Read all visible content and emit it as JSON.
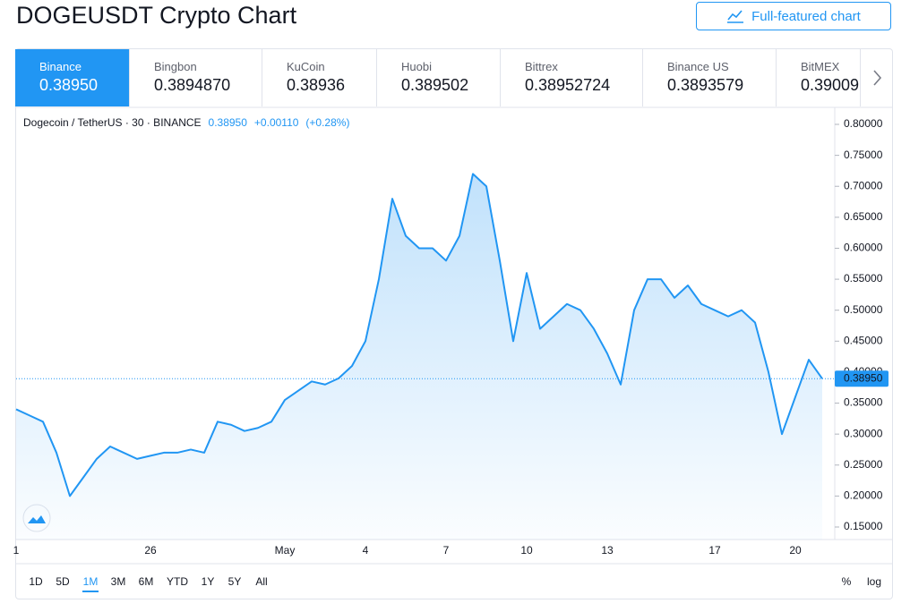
{
  "header": {
    "title": "DOGEUSDT Crypto Chart",
    "button": "Full-featured chart"
  },
  "exchanges": [
    {
      "name": "Binance",
      "price": "0.38950"
    },
    {
      "name": "Bingbon",
      "price": "0.3894870"
    },
    {
      "name": "KuCoin",
      "price": "0.38936"
    },
    {
      "name": "Huobi",
      "price": "0.389502"
    },
    {
      "name": "Bittrex",
      "price": "0.38952724"
    },
    {
      "name": "Binance US",
      "price": "0.3893579"
    },
    {
      "name": "BitMEX",
      "price": "0.39009"
    }
  ],
  "chart_data": {
    "type": "area",
    "legend": {
      "symbol": "Dogecoin / TetherUS · 30 · BINANCE",
      "price": "0.38950",
      "change": "+0.00110",
      "change_pct": "(+0.28%)"
    },
    "price_label": {
      "value": 0.3895,
      "label": "0.38950"
    },
    "color": "#2196f3",
    "categories": [
      "1",
      null,
      null,
      null,
      null,
      null,
      null,
      null,
      null,
      null,
      "26",
      null,
      null,
      null,
      null,
      null,
      null,
      null,
      null,
      null,
      "May",
      null,
      null,
      null,
      null,
      null,
      "4",
      null,
      null,
      null,
      null,
      null,
      "7",
      null,
      null,
      null,
      null,
      null,
      "10",
      null,
      null,
      null,
      null,
      null,
      "13",
      null,
      null,
      null,
      null,
      null,
      null,
      null,
      "17",
      null,
      null,
      null,
      null,
      null,
      "20",
      null,
      null
    ],
    "values": [
      0.34,
      0.33,
      0.32,
      0.27,
      0.2,
      0.23,
      0.26,
      0.28,
      0.27,
      0.26,
      0.265,
      0.27,
      0.27,
      0.275,
      0.27,
      0.32,
      0.315,
      0.305,
      0.31,
      0.32,
      0.355,
      0.37,
      0.385,
      0.38,
      0.39,
      0.41,
      0.45,
      0.55,
      0.68,
      0.62,
      0.6,
      0.6,
      0.58,
      0.62,
      0.72,
      0.7,
      0.58,
      0.45,
      0.56,
      0.47,
      0.49,
      0.51,
      0.5,
      0.47,
      0.43,
      0.38,
      0.5,
      0.55,
      0.55,
      0.52,
      0.54,
      0.51,
      0.5,
      0.49,
      0.5,
      0.48,
      0.4,
      0.3,
      0.36,
      0.42,
      0.3895
    ],
    "ylim": [
      0.15,
      0.8
    ],
    "yticks": [
      {
        "value": 0.15,
        "label": "0.15000"
      },
      {
        "value": 0.2,
        "label": "0.20000"
      },
      {
        "value": 0.25,
        "label": "0.25000"
      },
      {
        "value": 0.3,
        "label": "0.30000"
      },
      {
        "value": 0.35,
        "label": "0.35000"
      },
      {
        "value": 0.4,
        "label": "0.40000"
      },
      {
        "value": 0.45,
        "label": "0.45000"
      },
      {
        "value": 0.5,
        "label": "0.50000"
      },
      {
        "value": 0.55,
        "label": "0.55000"
      },
      {
        "value": 0.6,
        "label": "0.60000"
      },
      {
        "value": 0.65,
        "label": "0.65000"
      },
      {
        "value": 0.7,
        "label": "0.70000"
      },
      {
        "value": 0.75,
        "label": "0.75000"
      },
      {
        "value": 0.8,
        "label": "0.80000"
      }
    ]
  },
  "toolbar": {
    "ranges": [
      "1D",
      "5D",
      "1M",
      "3M",
      "6M",
      "YTD",
      "1Y",
      "5Y",
      "All"
    ],
    "active": "1M",
    "percent": "%",
    "log": "log"
  }
}
